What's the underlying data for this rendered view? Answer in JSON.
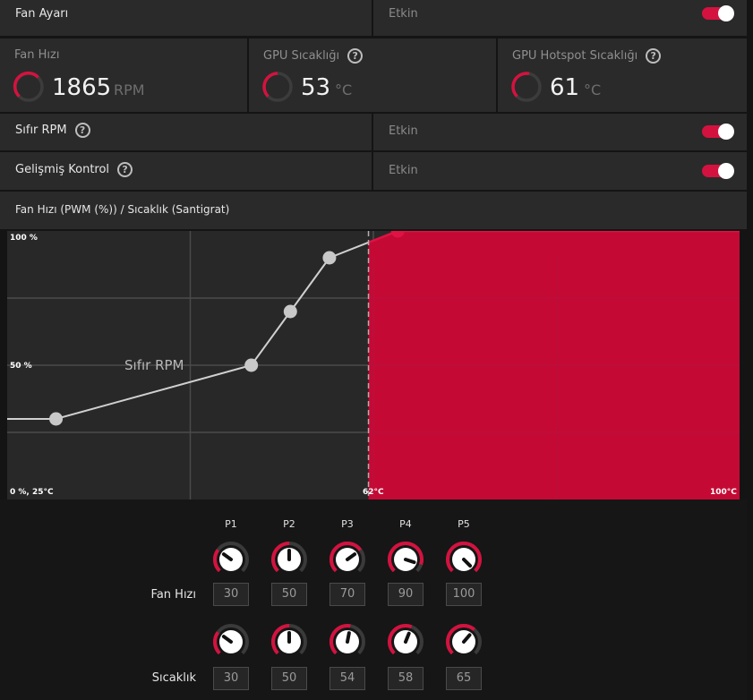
{
  "fan_settings": {
    "label": "Fan Ayarı",
    "value": "Etkin"
  },
  "stats": [
    {
      "title": "Fan Hızı",
      "value": "1865",
      "unit": "RPM",
      "help": false
    },
    {
      "title": "GPU Sıcaklığı",
      "value": "53",
      "unit": "°C",
      "help": true
    },
    {
      "title": "GPU Hotspot Sıcaklığı",
      "value": "61",
      "unit": "°C",
      "help": true
    }
  ],
  "zero_rpm": {
    "label": "Sıfır RPM",
    "value": "Etkin"
  },
  "advanced": {
    "label": "Gelişmiş Kontrol",
    "value": "Etkin"
  },
  "chart_header": "Fan Hızı (PWM (%)) / Sıcaklık (Santigrat)",
  "chart_data": {
    "type": "line",
    "xlabel_min": "0 %, 25°C",
    "x_mark_label": "62°C",
    "x_max_label": "100°C",
    "y_max_label": "100 %",
    "y_mid_label": "50 %",
    "zero_rpm_overlay": "Sıfır RPM",
    "xlim": [
      25,
      100
    ],
    "ylim": [
      0,
      100
    ],
    "zero_rpm_threshold_temp": 62,
    "points": [
      {
        "name": "P1",
        "temp": 30,
        "fan": 30
      },
      {
        "name": "P2",
        "temp": 50,
        "fan": 50
      },
      {
        "name": "P3",
        "temp": 54,
        "fan": 70
      },
      {
        "name": "P4",
        "temp": 58,
        "fan": 90
      },
      {
        "name": "P5",
        "temp": 65,
        "fan": 100
      }
    ],
    "colors": {
      "accent": "#c40a34",
      "line": "#d0d0d0"
    }
  },
  "controls": {
    "headers": [
      "P1",
      "P2",
      "P3",
      "P4",
      "P5"
    ],
    "fan_label": "Fan Hızı",
    "temp_label": "Sıcaklık",
    "fan_values": [
      "30",
      "50",
      "70",
      "90",
      "100"
    ],
    "temp_values": [
      "30",
      "50",
      "54",
      "58",
      "65"
    ],
    "fan_fraction": [
      0.3,
      0.5,
      0.7,
      0.9,
      1.0
    ],
    "temp_fraction": [
      0.3,
      0.5,
      0.54,
      0.58,
      0.65
    ]
  },
  "icons": {
    "help": "help-circle-icon",
    "toggle": "toggle-switch",
    "gauge": "arc-gauge-icon"
  }
}
